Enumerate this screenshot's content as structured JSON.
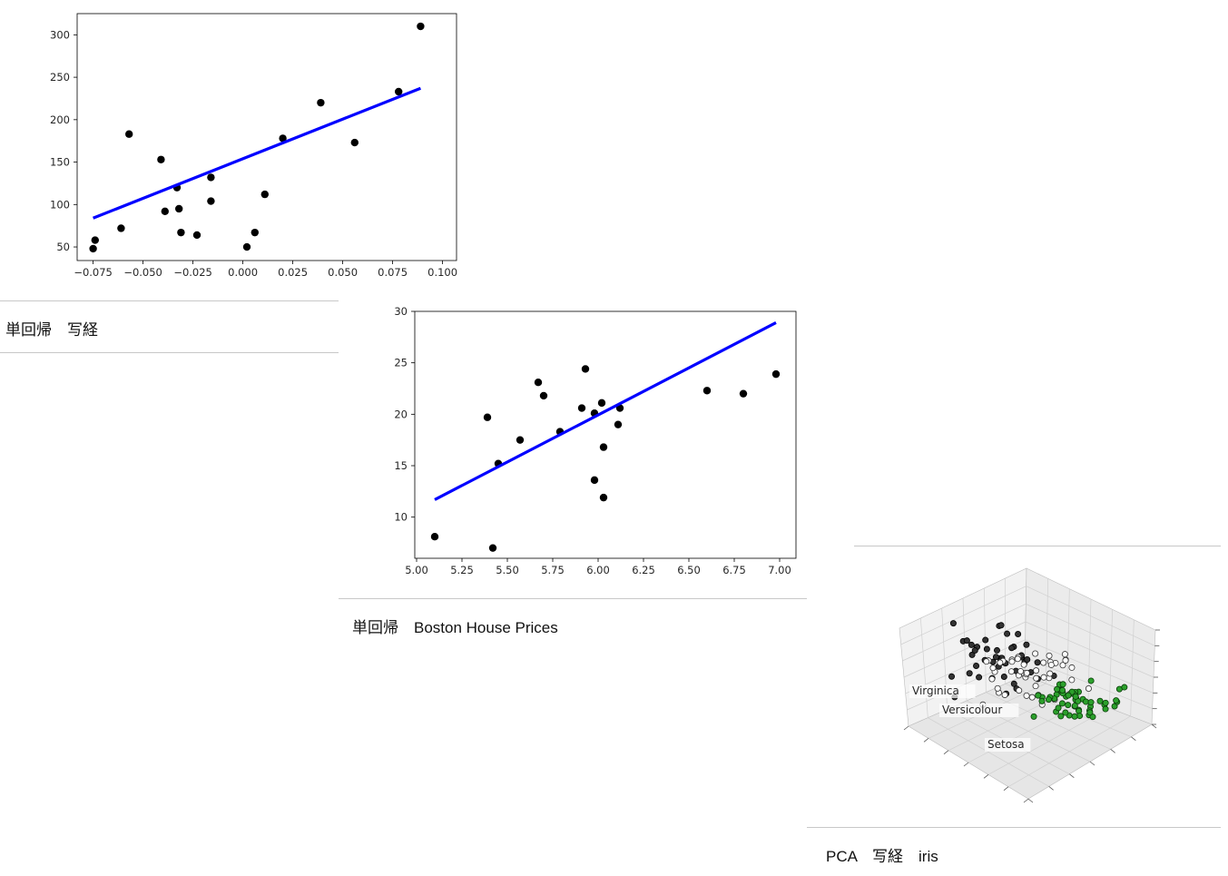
{
  "colors": {
    "line": "#0000ff",
    "points": "#000000",
    "setosa": "#2ca02c",
    "versicolour": "#ffffff",
    "virginica": "#333333"
  },
  "captions": {
    "diabetes": "単回帰　写経",
    "boston": "単回帰　Boston House Prices",
    "iris": "PCA　写経　iris"
  },
  "chart_data": [
    {
      "id": "diabetes",
      "type": "scatter",
      "title": "",
      "xlabel": "",
      "ylabel": "",
      "xlim": [
        -0.083,
        0.107
      ],
      "ylim": [
        34,
        325
      ],
      "xticks": [
        -0.075,
        -0.05,
        -0.025,
        0.0,
        0.025,
        0.05,
        0.075,
        0.1
      ],
      "xtick_labels": [
        "−0.075",
        "−0.050",
        "−0.025",
        "0.000",
        "0.025",
        "0.050",
        "0.075",
        "0.100"
      ],
      "yticks": [
        50,
        100,
        150,
        200,
        250,
        300
      ],
      "ytick_labels": [
        "50",
        "100",
        "150",
        "200",
        "250",
        "300"
      ],
      "points": [
        [
          -0.075,
          48
        ],
        [
          -0.074,
          58
        ],
        [
          -0.061,
          72
        ],
        [
          -0.057,
          183
        ],
        [
          -0.041,
          153
        ],
        [
          -0.039,
          92
        ],
        [
          -0.033,
          120
        ],
        [
          -0.032,
          95
        ],
        [
          -0.031,
          67
        ],
        [
          -0.023,
          64
        ],
        [
          -0.016,
          132
        ],
        [
          -0.016,
          104
        ],
        [
          0.002,
          50
        ],
        [
          0.006,
          67
        ],
        [
          0.011,
          112
        ],
        [
          0.02,
          178
        ],
        [
          0.039,
          220
        ],
        [
          0.056,
          173
        ],
        [
          0.078,
          233
        ],
        [
          0.089,
          310
        ]
      ],
      "fit_line": [
        [
          -0.075,
          84
        ],
        [
          0.089,
          237
        ]
      ],
      "grid": false
    },
    {
      "id": "boston",
      "type": "scatter",
      "title": "",
      "xlabel": "",
      "ylabel": "",
      "xlim": [
        4.99,
        7.09
      ],
      "ylim": [
        6.0,
        30.0
      ],
      "xticks": [
        5.0,
        5.25,
        5.5,
        5.75,
        6.0,
        6.25,
        6.5,
        6.75,
        7.0
      ],
      "xtick_labels": [
        "5.00",
        "5.25",
        "5.50",
        "5.75",
        "6.00",
        "6.25",
        "6.50",
        "6.75",
        "7.00"
      ],
      "yticks": [
        10,
        15,
        20,
        25,
        30
      ],
      "ytick_labels": [
        "10",
        "15",
        "20",
        "25",
        "30"
      ],
      "points": [
        [
          5.1,
          8.1
        ],
        [
          5.39,
          19.7
        ],
        [
          5.42,
          7.0
        ],
        [
          5.45,
          15.2
        ],
        [
          5.57,
          17.5
        ],
        [
          5.67,
          23.1
        ],
        [
          5.7,
          21.8
        ],
        [
          5.79,
          18.3
        ],
        [
          5.91,
          20.6
        ],
        [
          5.93,
          24.4
        ],
        [
          5.98,
          20.1
        ],
        [
          5.98,
          13.6
        ],
        [
          6.02,
          21.1
        ],
        [
          6.03,
          16.8
        ],
        [
          6.03,
          11.9
        ],
        [
          6.11,
          19.0
        ],
        [
          6.12,
          20.6
        ],
        [
          6.6,
          22.3
        ],
        [
          6.8,
          22.0
        ],
        [
          6.98,
          23.9
        ]
      ],
      "fit_line": [
        [
          5.1,
          11.7
        ],
        [
          6.98,
          28.9
        ]
      ],
      "grid": false
    },
    {
      "id": "iris",
      "type": "scatter",
      "subtype": "3d",
      "title": "",
      "labels": [
        "Virginica",
        "Versicolour",
        "Setosa"
      ],
      "grid": true,
      "point_count_approx": 150
    }
  ]
}
